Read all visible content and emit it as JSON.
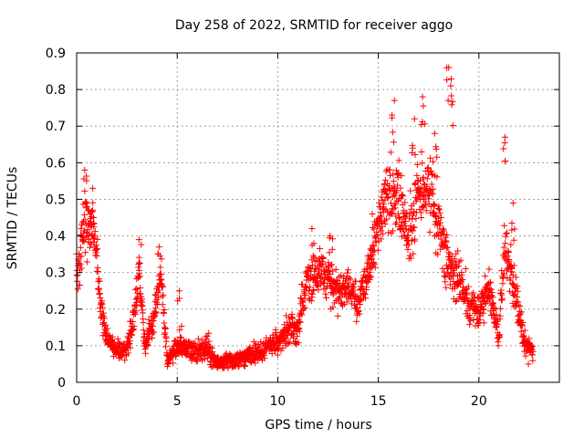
{
  "chart_data": {
    "type": "scatter",
    "title": "Day 258 of 2022, SRMTID for receiver aggo",
    "xlabel": "GPS time / hours",
    "ylabel": "SRMTID / TECUs",
    "xlim": [
      0,
      24
    ],
    "ylim": [
      0,
      0.9
    ],
    "xticks": [
      0,
      5,
      10,
      15,
      20
    ],
    "yticks": [
      0,
      0.1,
      0.2,
      0.3,
      0.4,
      0.5,
      0.6,
      0.7,
      0.8,
      0.9
    ],
    "grid": true,
    "marker": "+",
    "color": "#ff0000",
    "series": [
      {
        "name": "SRMTID",
        "profile": [
          [
            0.0,
            0.3,
            0.1
          ],
          [
            0.2,
            0.36,
            0.12
          ],
          [
            0.4,
            0.45,
            0.13
          ],
          [
            0.6,
            0.42,
            0.12
          ],
          [
            0.8,
            0.44,
            0.1
          ],
          [
            1.0,
            0.36,
            0.08
          ],
          [
            1.2,
            0.2,
            0.06
          ],
          [
            1.5,
            0.12,
            0.05
          ],
          [
            2.0,
            0.09,
            0.04
          ],
          [
            2.5,
            0.09,
            0.04
          ],
          [
            2.8,
            0.16,
            0.06
          ],
          [
            3.1,
            0.3,
            0.07
          ],
          [
            3.4,
            0.1,
            0.04
          ],
          [
            3.7,
            0.15,
            0.05
          ],
          [
            4.0,
            0.22,
            0.06
          ],
          [
            4.2,
            0.3,
            0.06
          ],
          [
            4.5,
            0.06,
            0.03
          ],
          [
            5.0,
            0.1,
            0.05
          ],
          [
            5.5,
            0.09,
            0.04
          ],
          [
            6.0,
            0.08,
            0.04
          ],
          [
            6.5,
            0.1,
            0.06
          ],
          [
            7.0,
            0.05,
            0.03
          ],
          [
            7.5,
            0.06,
            0.03
          ],
          [
            8.0,
            0.06,
            0.03
          ],
          [
            8.5,
            0.07,
            0.04
          ],
          [
            9.0,
            0.08,
            0.04
          ],
          [
            9.5,
            0.1,
            0.05
          ],
          [
            10.0,
            0.11,
            0.05
          ],
          [
            10.5,
            0.14,
            0.06
          ],
          [
            11.0,
            0.15,
            0.06
          ],
          [
            11.5,
            0.28,
            0.1
          ],
          [
            12.0,
            0.3,
            0.1
          ],
          [
            12.5,
            0.28,
            0.09
          ],
          [
            13.0,
            0.25,
            0.08
          ],
          [
            13.5,
            0.26,
            0.08
          ],
          [
            14.0,
            0.22,
            0.07
          ],
          [
            14.5,
            0.3,
            0.09
          ],
          [
            15.0,
            0.42,
            0.1
          ],
          [
            15.5,
            0.52,
            0.14
          ],
          [
            16.0,
            0.5,
            0.15
          ],
          [
            16.5,
            0.4,
            0.13
          ],
          [
            17.0,
            0.52,
            0.14
          ],
          [
            17.5,
            0.55,
            0.15
          ],
          [
            18.0,
            0.42,
            0.14
          ],
          [
            18.5,
            0.32,
            0.12
          ],
          [
            19.0,
            0.28,
            0.1
          ],
          [
            19.5,
            0.22,
            0.07
          ],
          [
            20.0,
            0.2,
            0.07
          ],
          [
            20.5,
            0.25,
            0.08
          ],
          [
            21.0,
            0.12,
            0.05
          ],
          [
            21.3,
            0.38,
            0.16
          ],
          [
            21.6,
            0.3,
            0.1
          ],
          [
            22.0,
            0.18,
            0.06
          ],
          [
            22.3,
            0.1,
            0.05
          ],
          [
            22.7,
            0.08,
            0.04
          ]
        ],
        "peaks": [
          [
            0.4,
            0.58
          ],
          [
            0.8,
            0.53
          ],
          [
            3.1,
            0.39
          ],
          [
            4.1,
            0.37
          ],
          [
            5.1,
            0.25
          ],
          [
            11.7,
            0.42
          ],
          [
            12.6,
            0.4
          ],
          [
            14.7,
            0.46
          ],
          [
            15.8,
            0.77
          ],
          [
            17.2,
            0.78
          ],
          [
            17.8,
            0.68
          ],
          [
            18.5,
            0.86
          ],
          [
            18.6,
            0.81
          ],
          [
            21.3,
            0.67
          ],
          [
            21.7,
            0.49
          ],
          [
            15.2,
            0.52
          ],
          [
            16.8,
            0.72
          ]
        ]
      }
    ]
  }
}
